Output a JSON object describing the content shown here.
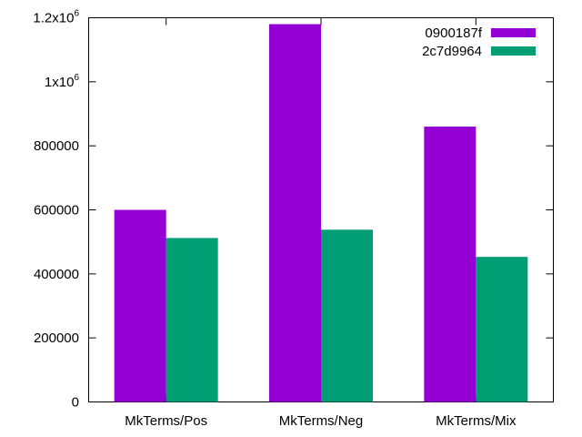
{
  "chart_data": {
    "type": "bar",
    "title": "",
    "xlabel": "",
    "ylabel": "",
    "categories": [
      "MkTerms/Pos",
      "MkTerms/Neg",
      "MkTerms/Mix"
    ],
    "series": [
      {
        "name": "0900187f",
        "color": "#9400d3",
        "values": [
          600000,
          1180000,
          860000
        ]
      },
      {
        "name": "2c7d9964",
        "color": "#009e73",
        "values": [
          512000,
          538000,
          453000
        ]
      }
    ],
    "ylim": [
      0,
      1200000
    ],
    "yticks": [
      {
        "value": 0,
        "label": "0"
      },
      {
        "value": 200000,
        "label": "200000"
      },
      {
        "value": 400000,
        "label": "400000"
      },
      {
        "value": 600000,
        "label": "600000"
      },
      {
        "value": 800000,
        "label": "800000"
      },
      {
        "value": 1000000,
        "label": "1x10",
        "superscript": "6"
      },
      {
        "value": 1200000,
        "label": "1.2x10",
        "superscript": "6"
      }
    ],
    "grid": false,
    "legend": "top-right"
  }
}
